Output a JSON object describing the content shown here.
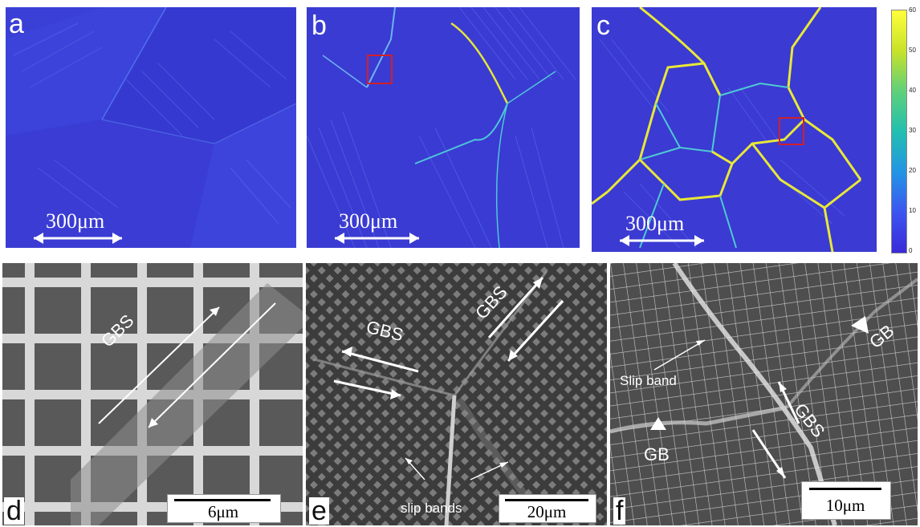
{
  "panels": {
    "a": {
      "label": "a",
      "scale": "300μm"
    },
    "b": {
      "label": "b",
      "scale": "300μm"
    },
    "c": {
      "label": "c",
      "scale": "300μm"
    },
    "d": {
      "label": "d",
      "scale": "6μm",
      "annotations": {
        "gbs": "GBS"
      }
    },
    "e": {
      "label": "e",
      "scale": "20μm",
      "annotations": {
        "gbs_left": "GBS",
        "gbs_right": "GBS",
        "slip": "slip bands"
      }
    },
    "f": {
      "label": "f",
      "scale": "10μm",
      "annotations": {
        "gb_top": "GB",
        "gb_bottom": "GB",
        "slip": "Slip band",
        "gbs": "GBS"
      }
    }
  },
  "colorbar": {
    "ticks": [
      "60",
      "50",
      "40",
      "30",
      "20",
      "10",
      "0"
    ],
    "colors": [
      "#ffff3a",
      "#c8e22a",
      "#5fd07a",
      "#22bfb0",
      "#2395e4",
      "#3c55f0",
      "#3a2ad8"
    ]
  }
}
